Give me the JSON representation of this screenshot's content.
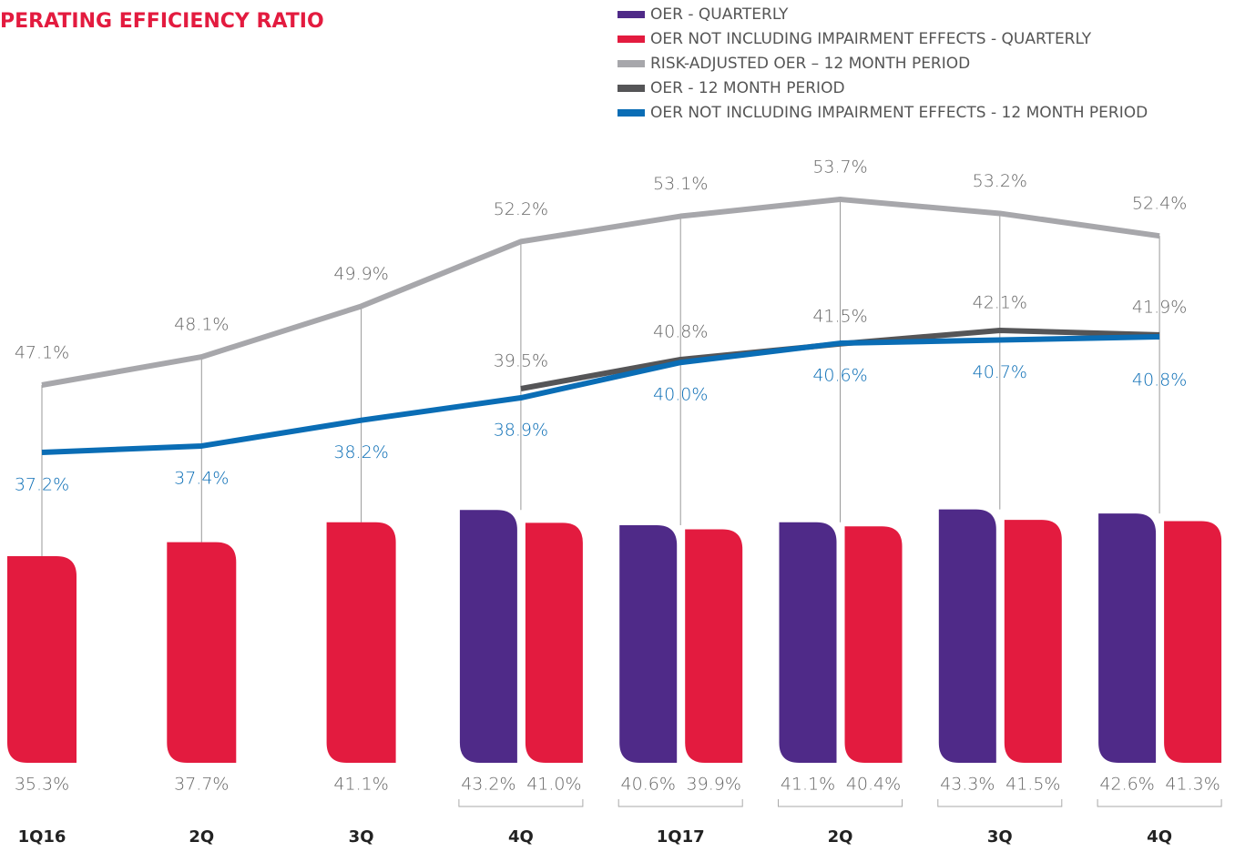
{
  "chart_data": {
    "type": "combo",
    "title": "PERATING EFFICIENCY RATIO",
    "categories": [
      "1Q16",
      "2Q",
      "3Q",
      "4Q",
      "1Q17",
      "2Q",
      "3Q",
      "4Q"
    ],
    "series": [
      {
        "name": "OER - QUARTERLY",
        "type": "bar",
        "color": "#4f2a88",
        "values": [
          null,
          null,
          null,
          43.2,
          40.6,
          41.1,
          43.3,
          42.6
        ],
        "value_labels": [
          null,
          null,
          null,
          "43.2%",
          "40.6%",
          "41.1%",
          "43.3%",
          "42.6%"
        ]
      },
      {
        "name": "OER NOT INCLUDING IMPAIRMENT EFFECTS - QUARTERLY",
        "type": "bar",
        "color": "#e31b3f",
        "values": [
          35.3,
          37.7,
          41.1,
          41.0,
          39.9,
          40.4,
          41.5,
          41.3
        ],
        "value_labels": [
          "35.3%",
          "37.7%",
          "41.1%",
          "41.0%",
          "39.9%",
          "40.4%",
          "41.5%",
          "41.3%"
        ]
      },
      {
        "name": "RISK-ADJUSTED OER – 12 MONTH PERIOD",
        "type": "line",
        "color": "#a7a7ab",
        "values": [
          47.1,
          48.1,
          49.9,
          52.2,
          53.1,
          53.7,
          53.2,
          52.4
        ],
        "value_labels": [
          "47.1%",
          "48.1%",
          "49.9%",
          "52.2%",
          "53.1%",
          "53.7%",
          "53.2%",
          "52.4%"
        ]
      },
      {
        "name": "OER - 12 MONTH PERIOD",
        "type": "line",
        "color": "#555557",
        "values": [
          null,
          null,
          null,
          39.5,
          40.8,
          41.5,
          42.1,
          41.9
        ],
        "value_labels": [
          null,
          null,
          null,
          "39.5%",
          "40.8%",
          "41.5%",
          "42.1%",
          "41.9%"
        ]
      },
      {
        "name": "OER NOT INCLUDING IMPAIRMENT EFFECTS - 12 MONTH PERIOD",
        "type": "line",
        "color": "#0a6db5",
        "values": [
          37.2,
          37.4,
          38.2,
          38.9,
          40.0,
          40.6,
          40.7,
          40.8
        ],
        "value_labels": [
          "37.2%",
          "37.4%",
          "38.2%",
          "38.9%",
          "40.0%",
          "40.6%",
          "40.7%",
          "40.8%"
        ]
      }
    ]
  }
}
